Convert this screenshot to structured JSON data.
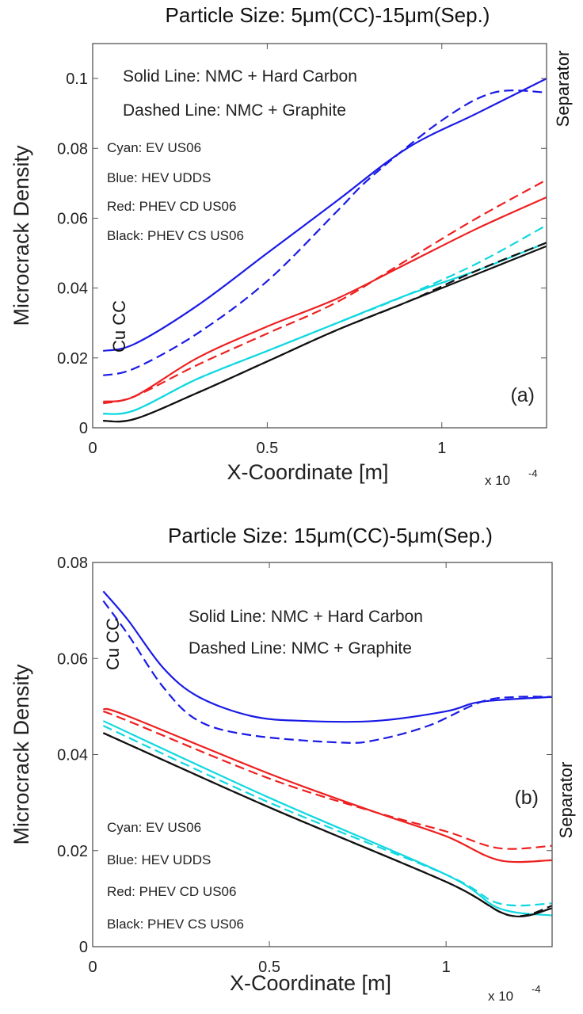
{
  "chart_data": [
    {
      "type": "line",
      "title": "Particle Size: 5μm(CC)-15μm(Sep.)",
      "xlabel": "X-Coordinate [m]",
      "ylabel": "Microcrack Density",
      "x_multiplier": "x 10",
      "x_multiplier_exp": "-4",
      "xlim": [
        0,
        1.3
      ],
      "ylim": [
        0,
        0.11
      ],
      "xticks": [
        "0",
        "0.5",
        "1"
      ],
      "xtick_values": [
        0,
        0.5,
        1
      ],
      "yticks": [
        "0",
        "0.02",
        "0.04",
        "0.06",
        "0.08",
        "0.1"
      ],
      "ytick_values": [
        0,
        0.02,
        0.04,
        0.06,
        0.08,
        0.1
      ],
      "grid": false,
      "panel_label": "(a)",
      "left_label": "Cu CC",
      "right_label": "Separator",
      "annotations": [
        "Solid Line: NMC + Hard Carbon",
        "Dashed Line: NMC + Graphite"
      ],
      "legend": [
        "Cyan: EV US06",
        "Blue: HEV UDDS",
        "Red: PHEV CD US06",
        "Black: PHEV CS US06"
      ],
      "series": [
        {
          "color": "#1a1ae6",
          "style": "solid",
          "x": [
            0.03,
            0.12,
            0.3,
            0.5,
            0.7,
            0.9,
            1.1,
            1.3
          ],
          "y": [
            0.022,
            0.024,
            0.035,
            0.05,
            0.065,
            0.08,
            0.09,
            0.1
          ]
        },
        {
          "color": "#1a1ae6",
          "style": "dashed",
          "x": [
            0.03,
            0.12,
            0.3,
            0.5,
            0.7,
            0.8,
            1.0,
            1.15,
            1.3
          ],
          "y": [
            0.015,
            0.017,
            0.027,
            0.042,
            0.062,
            0.072,
            0.088,
            0.096,
            0.096
          ]
        },
        {
          "color": "#ee2020",
          "style": "solid",
          "x": [
            0.03,
            0.12,
            0.3,
            0.5,
            0.7,
            0.9,
            1.1,
            1.3
          ],
          "y": [
            0.0075,
            0.009,
            0.02,
            0.029,
            0.037,
            0.047,
            0.057,
            0.066
          ]
        },
        {
          "color": "#ee2020",
          "style": "dashed",
          "x": [
            0.03,
            0.12,
            0.3,
            0.5,
            0.7,
            0.9,
            1.1,
            1.3
          ],
          "y": [
            0.007,
            0.009,
            0.018,
            0.027,
            0.036,
            0.048,
            0.06,
            0.071
          ]
        },
        {
          "color": "#10d8e0",
          "style": "solid",
          "x": [
            0.03,
            0.12,
            0.3,
            0.5,
            0.7,
            0.9,
            1.1,
            1.3
          ],
          "y": [
            0.004,
            0.005,
            0.014,
            0.022,
            0.03,
            0.038,
            0.045,
            0.053
          ]
        },
        {
          "color": "#10d8e0",
          "style": "dashed",
          "x": [
            0.03,
            0.12,
            0.3,
            0.5,
            0.7,
            0.9,
            1.1,
            1.3
          ],
          "y": [
            0.004,
            0.005,
            0.014,
            0.022,
            0.03,
            0.038,
            0.047,
            0.058
          ]
        },
        {
          "color": "#111111",
          "style": "solid",
          "x": [
            0.03,
            0.12,
            0.3,
            0.5,
            0.7,
            0.9,
            1.1,
            1.3
          ],
          "y": [
            0.002,
            0.0025,
            0.01,
            0.019,
            0.028,
            0.036,
            0.044,
            0.052
          ]
        },
        {
          "color": "#111111",
          "style": "dashed",
          "x": [
            0.03,
            0.12,
            0.3,
            0.5,
            0.7,
            0.9,
            1.1,
            1.3
          ],
          "y": [
            0.002,
            0.0025,
            0.01,
            0.019,
            0.028,
            0.036,
            0.045,
            0.053
          ]
        }
      ]
    },
    {
      "type": "line",
      "title": "Particle Size: 15μm(CC)-5μm(Sep.)",
      "xlabel": "X-Coordinate [m]",
      "ylabel": "Microcrack Density",
      "x_multiplier": "x 10",
      "x_multiplier_exp": "-4",
      "xlim": [
        0,
        1.3
      ],
      "ylim": [
        0,
        0.08
      ],
      "xticks": [
        "0",
        "0.5",
        "1"
      ],
      "xtick_values": [
        0,
        0.5,
        1
      ],
      "yticks": [
        "0",
        "0.02",
        "0.04",
        "0.06",
        "0.08"
      ],
      "ytick_values": [
        0,
        0.02,
        0.04,
        0.06,
        0.08
      ],
      "grid": false,
      "panel_label": "(b)",
      "left_label": "Cu CC",
      "right_label": "Separator",
      "annotations": [
        "Solid Line: NMC + Hard Carbon",
        "Dashed Line: NMC + Graphite"
      ],
      "legend": [
        "Cyan: EV US06",
        "Blue: HEV UDDS",
        "Red: PHEV CD US06",
        "Black: PHEV CS US06"
      ],
      "series": [
        {
          "color": "#1a1ae6",
          "style": "solid",
          "x": [
            0.03,
            0.1,
            0.2,
            0.3,
            0.45,
            0.6,
            0.8,
            1.0,
            1.1,
            1.3
          ],
          "y": [
            0.074,
            0.068,
            0.058,
            0.052,
            0.048,
            0.047,
            0.047,
            0.049,
            0.051,
            0.052
          ]
        },
        {
          "color": "#1a1ae6",
          "style": "dashed",
          "x": [
            0.03,
            0.1,
            0.2,
            0.3,
            0.45,
            0.7,
            0.8,
            0.95,
            1.1,
            1.2,
            1.3
          ],
          "y": [
            0.072,
            0.065,
            0.054,
            0.047,
            0.044,
            0.0425,
            0.043,
            0.046,
            0.051,
            0.052,
            0.052
          ]
        },
        {
          "color": "#ee2020",
          "style": "solid",
          "x": [
            0.03,
            0.1,
            0.5,
            0.8,
            1.0,
            1.15,
            1.3
          ],
          "y": [
            0.0495,
            0.048,
            0.036,
            0.028,
            0.023,
            0.018,
            0.018
          ]
        },
        {
          "color": "#ee2020",
          "style": "dashed",
          "x": [
            0.03,
            0.1,
            0.5,
            0.8,
            1.0,
            1.15,
            1.3
          ],
          "y": [
            0.049,
            0.047,
            0.035,
            0.028,
            0.024,
            0.0205,
            0.021
          ]
        },
        {
          "color": "#10d8e0",
          "style": "solid",
          "x": [
            0.03,
            0.5,
            1.0,
            1.15,
            1.3
          ],
          "y": [
            0.047,
            0.031,
            0.015,
            0.008,
            0.0065
          ]
        },
        {
          "color": "#10d8e0",
          "style": "dashed",
          "x": [
            0.03,
            0.5,
            1.0,
            1.15,
            1.3
          ],
          "y": [
            0.046,
            0.03,
            0.015,
            0.009,
            0.009
          ]
        },
        {
          "color": "#111111",
          "style": "solid",
          "x": [
            0.03,
            0.5,
            1.0,
            1.18,
            1.3
          ],
          "y": [
            0.0445,
            0.029,
            0.0135,
            0.0065,
            0.008
          ]
        },
        {
          "color": "#111111",
          "style": "dashed",
          "x": [
            0.03,
            0.5,
            1.0,
            1.18,
            1.3
          ],
          "y": [
            0.0445,
            0.029,
            0.0135,
            0.0065,
            0.0085
          ]
        }
      ]
    }
  ]
}
